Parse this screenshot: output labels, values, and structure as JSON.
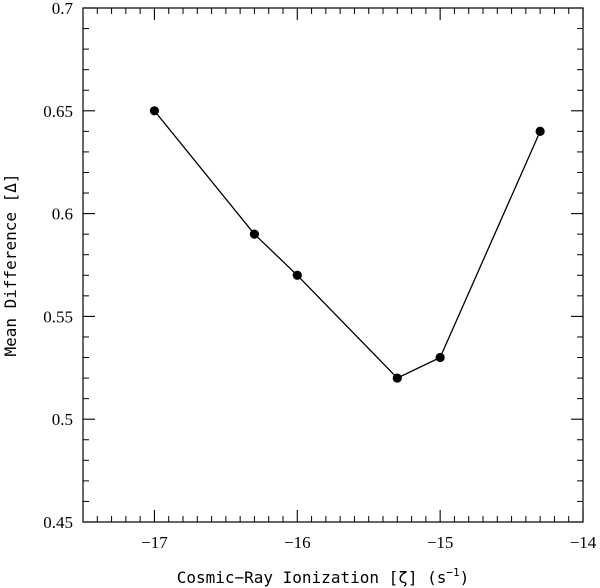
{
  "chart_data": {
    "type": "line",
    "xlabel_main": "Cosmic−Ray Ionization [ζ] (s",
    "xlabel_exp": "−1",
    "xlabel_close": ")",
    "ylabel": "Mean Difference [Δ]",
    "xlim": [
      -17.5,
      -14
    ],
    "ylim": [
      0.45,
      0.7
    ],
    "x_ticks": [
      -17,
      -16,
      -15,
      -14
    ],
    "x_tick_labels": [
      "−17",
      "−16",
      "−15",
      "−14"
    ],
    "y_ticks": [
      0.45,
      0.5,
      0.55,
      0.6,
      0.65,
      0.7
    ],
    "y_tick_labels": [
      "0.45",
      "0.5",
      "0.55",
      "0.6",
      "0.65",
      "0.7"
    ],
    "x_minor_step": 0.1,
    "y_minor_step": 0.01,
    "grid": false,
    "series": [
      {
        "x": [
          -17.0,
          -16.3,
          -16.0,
          -15.3,
          -15.0,
          -14.3
        ],
        "y": [
          0.65,
          0.59,
          0.57,
          0.52,
          0.53,
          0.64
        ]
      }
    ]
  }
}
